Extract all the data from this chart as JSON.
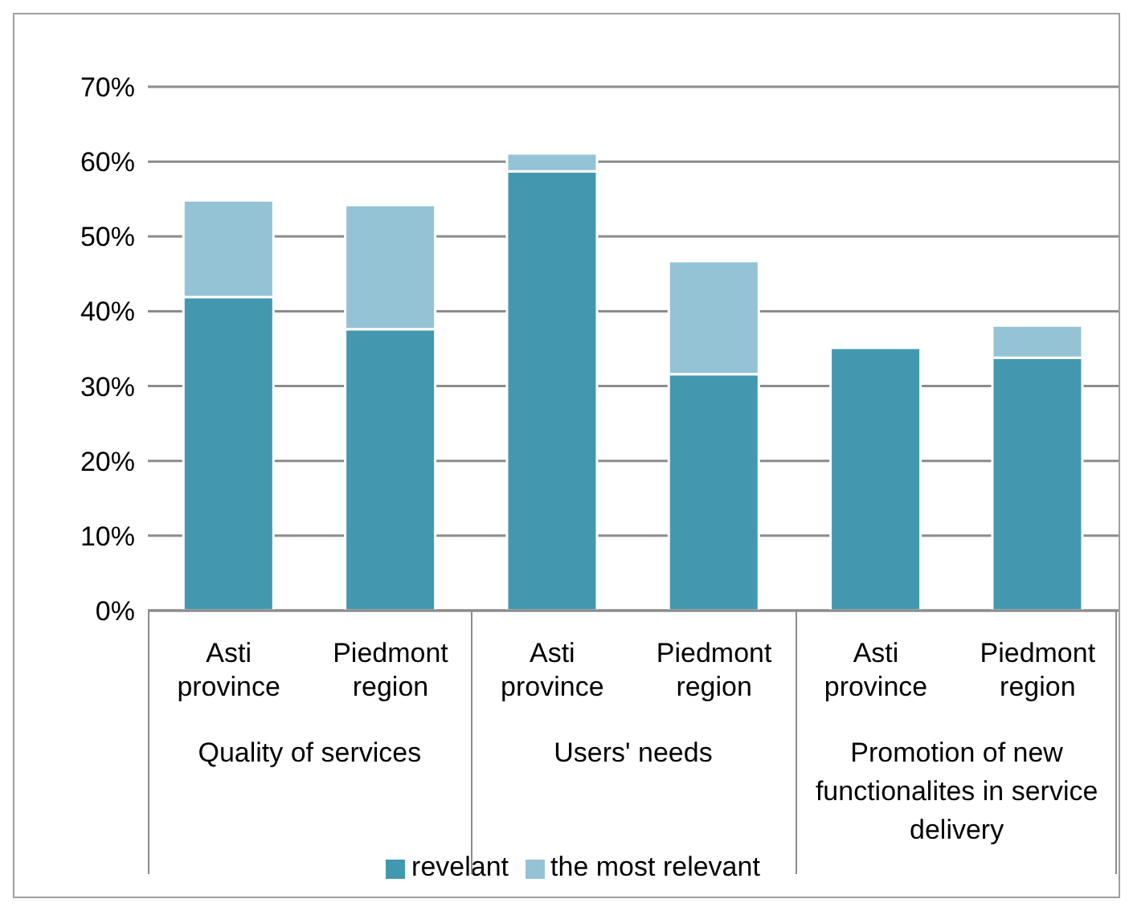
{
  "chart_data": {
    "type": "bar",
    "stacked": true,
    "categories": [
      "Asti province",
      "Piedmont region",
      "Asti province",
      "Piedmont region",
      "Asti province",
      "Piedmont region"
    ],
    "series": [
      {
        "name": "revelant",
        "color": "#4398b0",
        "values": [
          41.9,
          37.6,
          58.7,
          31.6,
          35.1,
          33.8
        ]
      },
      {
        "name": "the most relevant",
        "color": "#94c3d5",
        "values": [
          12.9,
          16.6,
          2.4,
          15.1,
          0,
          4.3
        ]
      }
    ],
    "ylim": [
      0,
      70
    ],
    "yticks": [
      {
        "value": 0,
        "label": "0%"
      },
      {
        "value": 10,
        "label": "10%"
      },
      {
        "value": 20,
        "label": "20%"
      },
      {
        "value": 30,
        "label": "30%"
      },
      {
        "value": 40,
        "label": "40%"
      },
      {
        "value": 50,
        "label": "50%"
      },
      {
        "value": 60,
        "label": "60%"
      },
      {
        "value": 70,
        "label": "70%"
      }
    ],
    "annotations": [
      "Quality of services",
      "Users' needs",
      "Promotion of new functionalites in service delivery"
    ],
    "grid": "y",
    "legend": "bottom"
  }
}
